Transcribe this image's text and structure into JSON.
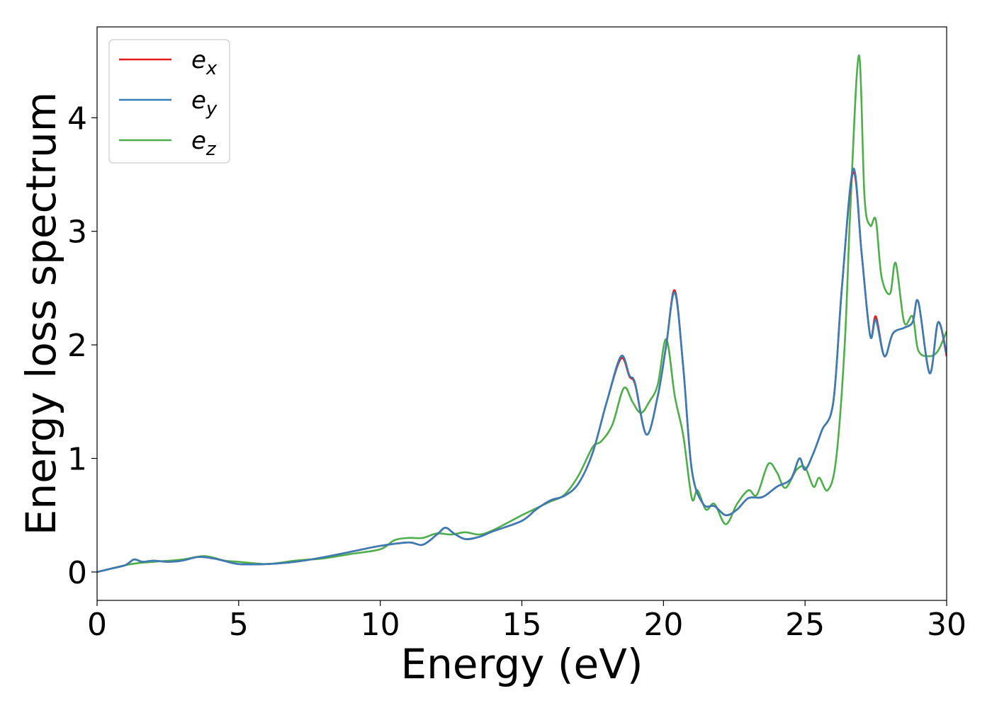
{
  "chart_data": {
    "type": "line",
    "title": "",
    "xlabel": "Energy (eV)",
    "ylabel": "Energy loss spectrum",
    "xlim": [
      0,
      30
    ],
    "ylim": [
      -0.25,
      4.8
    ],
    "xticks": [
      0,
      5,
      10,
      15,
      20,
      25,
      30
    ],
    "yticks": [
      0,
      1,
      2,
      3,
      4
    ],
    "grid": false,
    "legend": {
      "placement": "top-left"
    },
    "series": [
      {
        "name": "e_x",
        "sym": "e",
        "sub": "x",
        "color": "#e41a1c",
        "points": [
          [
            0,
            0
          ],
          [
            0.5,
            0.03
          ],
          [
            1.0,
            0.06
          ],
          [
            1.3,
            0.11
          ],
          [
            1.6,
            0.09
          ],
          [
            2.0,
            0.1
          ],
          [
            2.5,
            0.09
          ],
          [
            3.0,
            0.1
          ],
          [
            3.5,
            0.13
          ],
          [
            3.8,
            0.13
          ],
          [
            4.3,
            0.11
          ],
          [
            5.0,
            0.07
          ],
          [
            6.0,
            0.07
          ],
          [
            7.0,
            0.09
          ],
          [
            8.0,
            0.13
          ],
          [
            9.0,
            0.18
          ],
          [
            10.0,
            0.23
          ],
          [
            11.0,
            0.26
          ],
          [
            11.5,
            0.24
          ],
          [
            12.0,
            0.33
          ],
          [
            12.3,
            0.39
          ],
          [
            12.6,
            0.34
          ],
          [
            13.0,
            0.29
          ],
          [
            13.5,
            0.31
          ],
          [
            14.0,
            0.36
          ],
          [
            15.0,
            0.45
          ],
          [
            15.5,
            0.55
          ],
          [
            16.0,
            0.63
          ],
          [
            16.5,
            0.67
          ],
          [
            17.0,
            0.78
          ],
          [
            17.5,
            1.05
          ],
          [
            18.0,
            1.5
          ],
          [
            18.5,
            1.88
          ],
          [
            18.8,
            1.72
          ],
          [
            19.0,
            1.65
          ],
          [
            19.4,
            1.21
          ],
          [
            19.8,
            1.55
          ],
          [
            20.1,
            2.0
          ],
          [
            20.4,
            2.48
          ],
          [
            20.7,
            1.8
          ],
          [
            21.0,
            0.9
          ],
          [
            21.4,
            0.6
          ],
          [
            21.8,
            0.58
          ],
          [
            22.2,
            0.5
          ],
          [
            22.6,
            0.55
          ],
          [
            23.0,
            0.65
          ],
          [
            23.5,
            0.66
          ],
          [
            24.0,
            0.75
          ],
          [
            24.5,
            0.82
          ],
          [
            24.8,
            1.0
          ],
          [
            25.0,
            0.9
          ],
          [
            25.3,
            1.05
          ],
          [
            25.6,
            1.25
          ],
          [
            26.0,
            1.5
          ],
          [
            26.3,
            2.5
          ],
          [
            26.7,
            3.52
          ],
          [
            27.0,
            2.8
          ],
          [
            27.3,
            2.08
          ],
          [
            27.5,
            2.25
          ],
          [
            27.8,
            1.9
          ],
          [
            28.1,
            2.1
          ],
          [
            28.5,
            2.15
          ],
          [
            28.8,
            2.2
          ],
          [
            29.0,
            2.38
          ],
          [
            29.4,
            1.75
          ],
          [
            29.7,
            2.2
          ],
          [
            30.0,
            1.9
          ]
        ]
      },
      {
        "name": "e_y",
        "sym": "e",
        "sub": "y",
        "color": "#377eb8",
        "points": [
          [
            0,
            0
          ],
          [
            0.5,
            0.03
          ],
          [
            1.0,
            0.06
          ],
          [
            1.3,
            0.11
          ],
          [
            1.6,
            0.09
          ],
          [
            2.0,
            0.1
          ],
          [
            2.5,
            0.09
          ],
          [
            3.0,
            0.1
          ],
          [
            3.5,
            0.13
          ],
          [
            3.8,
            0.13
          ],
          [
            4.3,
            0.11
          ],
          [
            5.0,
            0.07
          ],
          [
            6.0,
            0.07
          ],
          [
            7.0,
            0.09
          ],
          [
            8.0,
            0.13
          ],
          [
            9.0,
            0.18
          ],
          [
            10.0,
            0.23
          ],
          [
            11.0,
            0.26
          ],
          [
            11.5,
            0.24
          ],
          [
            12.0,
            0.33
          ],
          [
            12.3,
            0.39
          ],
          [
            12.6,
            0.34
          ],
          [
            13.0,
            0.29
          ],
          [
            13.5,
            0.31
          ],
          [
            14.0,
            0.36
          ],
          [
            15.0,
            0.45
          ],
          [
            15.5,
            0.55
          ],
          [
            16.0,
            0.63
          ],
          [
            16.5,
            0.67
          ],
          [
            17.0,
            0.78
          ],
          [
            17.5,
            1.05
          ],
          [
            18.0,
            1.5
          ],
          [
            18.5,
            1.9
          ],
          [
            18.8,
            1.73
          ],
          [
            19.0,
            1.66
          ],
          [
            19.4,
            1.21
          ],
          [
            19.8,
            1.55
          ],
          [
            20.1,
            2.0
          ],
          [
            20.4,
            2.46
          ],
          [
            20.7,
            1.8
          ],
          [
            21.0,
            0.9
          ],
          [
            21.4,
            0.6
          ],
          [
            21.8,
            0.58
          ],
          [
            22.2,
            0.5
          ],
          [
            22.6,
            0.55
          ],
          [
            23.0,
            0.65
          ],
          [
            23.5,
            0.66
          ],
          [
            24.0,
            0.75
          ],
          [
            24.5,
            0.82
          ],
          [
            24.8,
            1.0
          ],
          [
            25.0,
            0.9
          ],
          [
            25.3,
            1.05
          ],
          [
            25.6,
            1.25
          ],
          [
            26.0,
            1.5
          ],
          [
            26.3,
            2.5
          ],
          [
            26.7,
            3.55
          ],
          [
            27.0,
            2.8
          ],
          [
            27.3,
            2.08
          ],
          [
            27.5,
            2.22
          ],
          [
            27.8,
            1.9
          ],
          [
            28.1,
            2.1
          ],
          [
            28.5,
            2.15
          ],
          [
            28.8,
            2.2
          ],
          [
            29.0,
            2.38
          ],
          [
            29.4,
            1.75
          ],
          [
            29.7,
            2.2
          ],
          [
            30.0,
            1.92
          ]
        ]
      },
      {
        "name": "e_z",
        "sym": "e",
        "sub": "z",
        "color": "#4daf4a",
        "points": [
          [
            0,
            0
          ],
          [
            0.5,
            0.03
          ],
          [
            1.0,
            0.06
          ],
          [
            1.5,
            0.08
          ],
          [
            2.0,
            0.09
          ],
          [
            3.0,
            0.11
          ],
          [
            3.8,
            0.14
          ],
          [
            4.5,
            0.1
          ],
          [
            5.0,
            0.09
          ],
          [
            6.0,
            0.07
          ],
          [
            7.0,
            0.1
          ],
          [
            8.0,
            0.12
          ],
          [
            9.0,
            0.16
          ],
          [
            10.0,
            0.2
          ],
          [
            10.5,
            0.28
          ],
          [
            11.0,
            0.3
          ],
          [
            11.5,
            0.3
          ],
          [
            12.0,
            0.34
          ],
          [
            12.5,
            0.33
          ],
          [
            13.0,
            0.35
          ],
          [
            13.5,
            0.33
          ],
          [
            14.0,
            0.37
          ],
          [
            15.0,
            0.5
          ],
          [
            15.5,
            0.56
          ],
          [
            16.0,
            0.62
          ],
          [
            16.5,
            0.68
          ],
          [
            17.0,
            0.85
          ],
          [
            17.5,
            1.1
          ],
          [
            17.8,
            1.15
          ],
          [
            18.2,
            1.3
          ],
          [
            18.6,
            1.62
          ],
          [
            18.9,
            1.5
          ],
          [
            19.2,
            1.4
          ],
          [
            19.5,
            1.5
          ],
          [
            19.8,
            1.65
          ],
          [
            20.1,
            2.05
          ],
          [
            20.4,
            1.55
          ],
          [
            20.7,
            1.2
          ],
          [
            21.0,
            0.65
          ],
          [
            21.2,
            0.72
          ],
          [
            21.5,
            0.55
          ],
          [
            21.8,
            0.6
          ],
          [
            22.2,
            0.42
          ],
          [
            22.6,
            0.6
          ],
          [
            23.0,
            0.72
          ],
          [
            23.3,
            0.68
          ],
          [
            23.7,
            0.95
          ],
          [
            24.0,
            0.88
          ],
          [
            24.3,
            0.74
          ],
          [
            24.7,
            0.9
          ],
          [
            25.0,
            0.92
          ],
          [
            25.3,
            0.75
          ],
          [
            25.5,
            0.83
          ],
          [
            25.8,
            0.72
          ],
          [
            26.1,
            1.0
          ],
          [
            26.4,
            2.0
          ],
          [
            26.6,
            3.2
          ],
          [
            26.9,
            4.55
          ],
          [
            27.1,
            3.3
          ],
          [
            27.3,
            3.05
          ],
          [
            27.5,
            3.1
          ],
          [
            27.7,
            2.6
          ],
          [
            28.0,
            2.45
          ],
          [
            28.2,
            2.72
          ],
          [
            28.5,
            2.2
          ],
          [
            28.8,
            2.25
          ],
          [
            29.0,
            1.95
          ],
          [
            29.4,
            1.9
          ],
          [
            29.7,
            1.95
          ],
          [
            30.0,
            2.12
          ]
        ]
      }
    ]
  }
}
